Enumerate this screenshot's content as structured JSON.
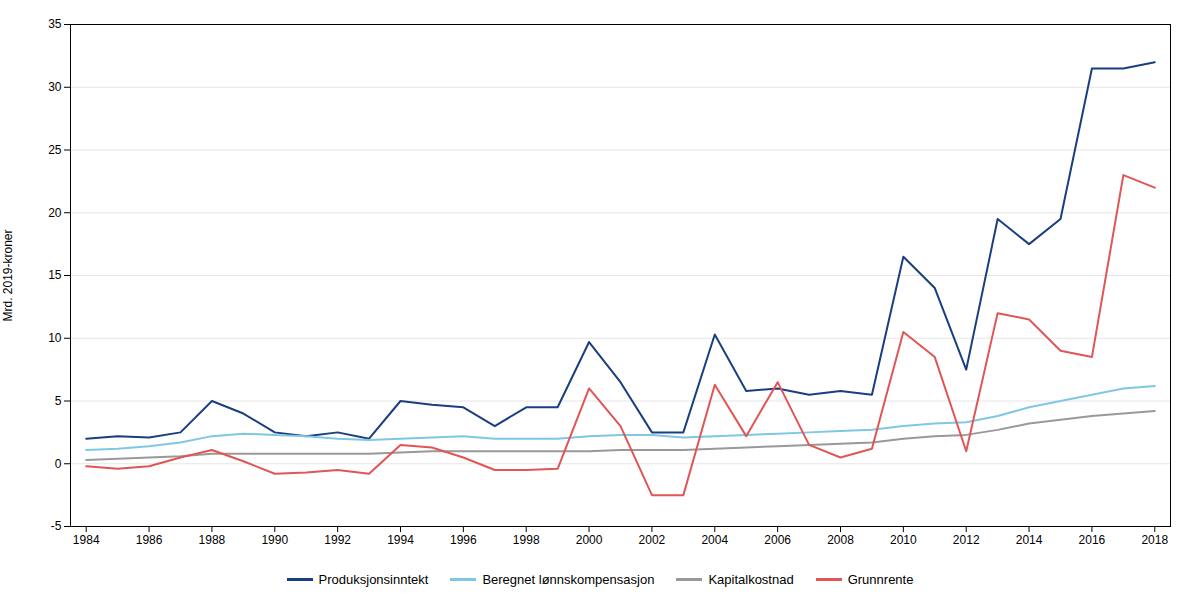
{
  "chart_data": {
    "type": "line",
    "ylabel": "Mrd. 2019-kroner",
    "x": [
      1984,
      1985,
      1986,
      1987,
      1988,
      1989,
      1990,
      1991,
      1992,
      1993,
      1994,
      1995,
      1996,
      1997,
      1998,
      1999,
      2000,
      2001,
      2002,
      2003,
      2004,
      2005,
      2006,
      2007,
      2008,
      2009,
      2010,
      2011,
      2012,
      2013,
      2014,
      2015,
      2016,
      2017,
      2018
    ],
    "series": [
      {
        "name": "Produksjonsinntekt",
        "color": "#1a3f80",
        "values": [
          2.0,
          2.2,
          2.1,
          2.5,
          5.0,
          4.0,
          2.5,
          2.2,
          2.5,
          2.0,
          5.0,
          4.7,
          4.5,
          3.0,
          4.5,
          4.5,
          9.7,
          6.5,
          2.5,
          2.5,
          10.3,
          5.8,
          6.0,
          5.5,
          5.8,
          5.5,
          16.5,
          14.0,
          7.5,
          19.5,
          17.5,
          19.5,
          31.5,
          31.5,
          32.0
        ]
      },
      {
        "name": "Beregnet lønnskompensasjon",
        "color": "#7ec8e3",
        "values": [
          1.1,
          1.2,
          1.4,
          1.7,
          2.2,
          2.4,
          2.3,
          2.2,
          2.0,
          1.9,
          2.0,
          2.1,
          2.2,
          2.0,
          2.0,
          2.0,
          2.2,
          2.3,
          2.3,
          2.1,
          2.2,
          2.3,
          2.4,
          2.5,
          2.6,
          2.7,
          3.0,
          3.2,
          3.3,
          3.8,
          4.5,
          5.0,
          5.5,
          6.0,
          6.2
        ]
      },
      {
        "name": "Kapitalkostnad",
        "color": "#999999",
        "values": [
          0.3,
          0.4,
          0.5,
          0.6,
          0.8,
          0.8,
          0.8,
          0.8,
          0.8,
          0.8,
          0.9,
          1.0,
          1.0,
          1.0,
          1.0,
          1.0,
          1.0,
          1.1,
          1.1,
          1.1,
          1.2,
          1.3,
          1.4,
          1.5,
          1.6,
          1.7,
          2.0,
          2.2,
          2.3,
          2.7,
          3.2,
          3.5,
          3.8,
          4.0,
          4.2
        ]
      },
      {
        "name": "Grunnrente",
        "color": "#e05555",
        "values": [
          -0.2,
          -0.4,
          -0.2,
          0.5,
          1.1,
          0.2,
          -0.8,
          -0.7,
          -0.5,
          -0.8,
          1.5,
          1.3,
          0.5,
          -0.5,
          -0.5,
          -0.4,
          6.0,
          3.0,
          -2.5,
          -2.5,
          6.3,
          2.2,
          6.5,
          1.5,
          0.5,
          1.2,
          10.5,
          8.5,
          1.0,
          12.0,
          11.5,
          9.0,
          8.5,
          23.0,
          22.0
        ]
      }
    ],
    "xlim": [
      1983.5,
      2018.5
    ],
    "xticks": [
      1984,
      1986,
      1988,
      1990,
      1992,
      1994,
      1996,
      1998,
      2000,
      2002,
      2004,
      2006,
      2008,
      2010,
      2012,
      2014,
      2016,
      2018
    ],
    "ylim": [
      -5,
      35
    ],
    "yticks": [
      -5,
      0,
      5,
      10,
      15,
      20,
      25,
      30,
      35
    ],
    "grid": true,
    "legend": "bottom"
  }
}
